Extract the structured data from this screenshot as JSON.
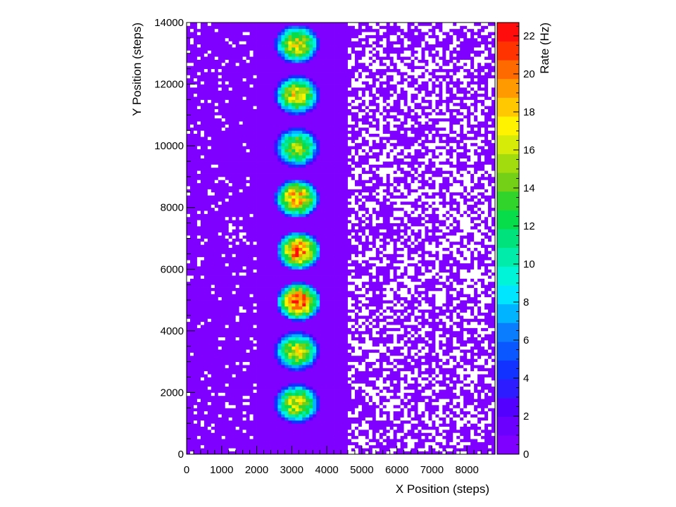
{
  "chart_data": {
    "type": "heatmap",
    "title": "",
    "xlabel": "X Position (steps)",
    "ylabel": "Y Position (steps)",
    "zlabel": "Rate (Hz)",
    "xlim": [
      0,
      8800
    ],
    "ylim": [
      0,
      14000
    ],
    "zlim": [
      0,
      22.7
    ],
    "x_ticks": [
      0,
      1000,
      2000,
      3000,
      4000,
      5000,
      6000,
      7000,
      8000
    ],
    "y_ticks": [
      0,
      2000,
      4000,
      6000,
      8000,
      10000,
      12000,
      14000
    ],
    "z_ticks": [
      0,
      2,
      4,
      6,
      8,
      10,
      12,
      14,
      16,
      18,
      20,
      22
    ],
    "bin_size": [
      100,
      100
    ],
    "grid": false,
    "colorbar": "right",
    "spots": [
      {
        "x": 3150,
        "y": 1650,
        "peak_rate": 17.5,
        "radius": 650
      },
      {
        "x": 3150,
        "y": 3350,
        "peak_rate": 17.0,
        "radius": 650
      },
      {
        "x": 3200,
        "y": 4950,
        "peak_rate": 22.0,
        "radius": 650
      },
      {
        "x": 3200,
        "y": 6600,
        "peak_rate": 21.5,
        "radius": 650
      },
      {
        "x": 3150,
        "y": 8300,
        "peak_rate": 20.0,
        "radius": 650
      },
      {
        "x": 3150,
        "y": 9950,
        "peak_rate": 16.0,
        "radius": 650
      },
      {
        "x": 3150,
        "y": 11650,
        "peak_rate": 18.0,
        "radius": 650
      },
      {
        "x": 3150,
        "y": 13300,
        "peak_rate": 17.5,
        "radius": 650
      }
    ],
    "background": {
      "band_center_x": 3300,
      "band_half_width": 1300,
      "band_rate": 0.8,
      "outside_rate": 0.2,
      "empty_bin_fraction_left": 0.08,
      "empty_bin_fraction_right": 0.4,
      "empty_bin_color": "#ffffff"
    },
    "palette": [
      "#7f00ff",
      "#6b00ff",
      "#5300ff",
      "#2d1cff",
      "#1232ff",
      "#0a57ff",
      "#0a7dff",
      "#00b4ff",
      "#00e6ff",
      "#00f5d8",
      "#00ecaa",
      "#00e37c",
      "#07dc4a",
      "#30d42a",
      "#73d017",
      "#a2dc0f",
      "#d6eb08",
      "#fff300",
      "#ffc800",
      "#ff9a00",
      "#ff6a00",
      "#ff3300",
      "#ff0d0d"
    ]
  }
}
